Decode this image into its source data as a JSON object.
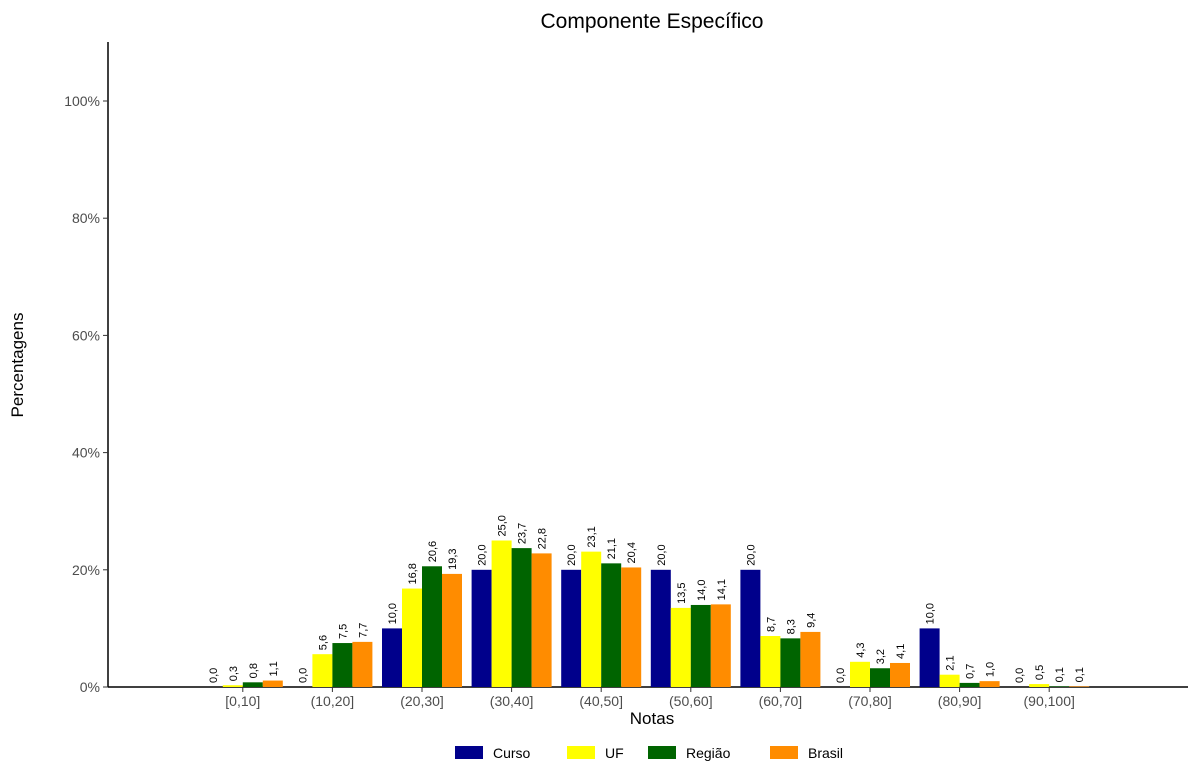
{
  "chart_data": {
    "type": "bar",
    "title": "Componente Específico",
    "xlabel": "Notas",
    "ylabel": "Percentagens",
    "ylim": [
      0,
      110
    ],
    "yticks": [
      0,
      20,
      40,
      60,
      80,
      100
    ],
    "ytick_labels": [
      "0%",
      "20%",
      "40%",
      "60%",
      "80%",
      "100%"
    ],
    "categories": [
      "[0,10]",
      "(10,20]",
      "(20,30]",
      "(30,40]",
      "(40,50]",
      "(50,60]",
      "(60,70]",
      "(70,80]",
      "(80,90]",
      "(90,100]"
    ],
    "series": [
      {
        "name": "Curso",
        "color": "#00008b",
        "values": [
          0.0,
          0.0,
          10.0,
          20.0,
          20.0,
          20.0,
          20.0,
          0.0,
          10.0,
          0.0
        ],
        "labels": [
          "0,0",
          "0,0",
          "10,0",
          "20,0",
          "20,0",
          "20,0",
          "20,0",
          "0,0",
          "10,0",
          "0,0"
        ]
      },
      {
        "name": "UF",
        "color": "#ffff00",
        "values": [
          0.3,
          5.6,
          16.8,
          25.0,
          23.1,
          13.5,
          8.7,
          4.3,
          2.1,
          0.5
        ],
        "labels": [
          "0,3",
          "5,6",
          "16,8",
          "25,0",
          "23,1",
          "13,5",
          "8,7",
          "4,3",
          "2,1",
          "0,5"
        ]
      },
      {
        "name": "Região",
        "color": "#006400",
        "values": [
          0.8,
          7.5,
          20.6,
          23.7,
          21.1,
          14.0,
          8.3,
          3.2,
          0.7,
          0.1
        ],
        "labels": [
          "0,8",
          "7,5",
          "20,6",
          "23,7",
          "21,1",
          "14,0",
          "8,3",
          "3,2",
          "0,7",
          "0,1"
        ]
      },
      {
        "name": "Brasil",
        "color": "#ff8c00",
        "values": [
          1.1,
          7.7,
          19.3,
          22.8,
          20.4,
          14.1,
          9.4,
          4.1,
          1.0,
          0.1
        ],
        "labels": [
          "1,1",
          "7,7",
          "19,3",
          "22,8",
          "20,4",
          "14,1",
          "9,4",
          "4,1",
          "1,0",
          "0,1"
        ]
      }
    ],
    "legend_position": "bottom",
    "grid": false
  }
}
